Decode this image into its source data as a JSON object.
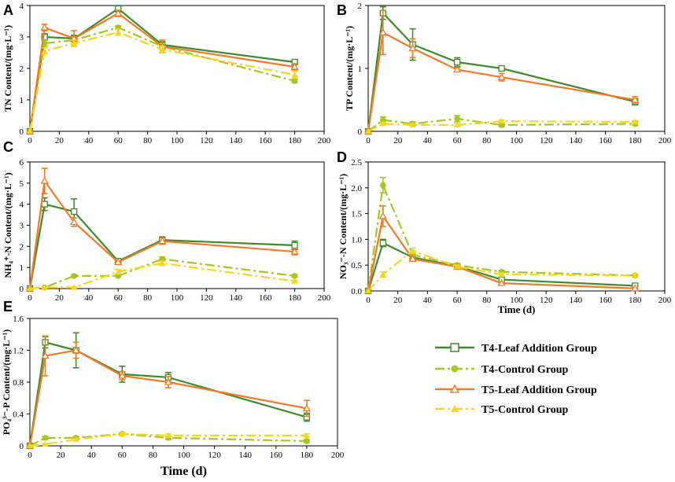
{
  "colors": {
    "t4_leaf": "#3e8b2c",
    "t4_control": "#a6c620",
    "t5_leaf": "#f37a24",
    "t5_control": "#f9d51e"
  },
  "legend": {
    "t4_leaf": "T4-Leaf Addition Group",
    "t4_control": "T4-Control Group",
    "t5_leaf": "T5-Leaf Addition Group",
    "t5_control": "T5-Control Group"
  },
  "chart_data": [
    {
      "panel": "A",
      "type": "line",
      "ylabel": "TN Content/(mg·L⁻¹)",
      "xlabel": "",
      "xlim": [
        0,
        200
      ],
      "ylim": [
        0,
        4
      ],
      "xticks": [
        "0",
        "20",
        "40",
        "60",
        "80",
        "100",
        "120",
        "140",
        "160",
        "180",
        "200"
      ],
      "yticks": [
        "0",
        "1",
        "2",
        "3",
        "4"
      ],
      "x": [
        0,
        10,
        30,
        60,
        90,
        180
      ],
      "series": [
        {
          "key": "t4_leaf",
          "values": [
            0,
            3.0,
            2.95,
            3.9,
            2.75,
            2.2
          ],
          "err": [
            0,
            0.1,
            0.1,
            0.1,
            0.1,
            0.05
          ]
        },
        {
          "key": "t4_control",
          "values": [
            0,
            2.8,
            2.9,
            3.3,
            2.7,
            1.6
          ],
          "err": [
            0,
            0.1,
            0.1,
            0.05,
            0.1,
            0.05
          ]
        },
        {
          "key": "t5_leaf",
          "values": [
            0,
            3.3,
            2.95,
            3.75,
            2.7,
            2.05
          ],
          "err": [
            0,
            0.1,
            0.25,
            0.1,
            0.2,
            0.1
          ]
        },
        {
          "key": "t5_control",
          "values": [
            0,
            2.55,
            2.8,
            3.15,
            2.6,
            1.8
          ],
          "err": [
            0,
            0.1,
            0.1,
            0.1,
            0.1,
            0.1
          ]
        }
      ]
    },
    {
      "panel": "B",
      "type": "line",
      "ylabel": "TP Content/(mg·L⁻¹)",
      "xlabel": "",
      "xlim": [
        0,
        200
      ],
      "ylim": [
        0,
        2
      ],
      "xticks": [
        "0",
        "20",
        "40",
        "60",
        "80",
        "100",
        "120",
        "140",
        "160",
        "180",
        "200"
      ],
      "yticks": [
        "0",
        "1",
        "2"
      ],
      "x": [
        0,
        10,
        30,
        60,
        90,
        180
      ],
      "series": [
        {
          "key": "t4_leaf",
          "values": [
            0,
            1.88,
            1.38,
            1.1,
            1.0,
            0.47
          ],
          "err": [
            0,
            0.1,
            0.25,
            0.07,
            0.03,
            0.05
          ]
        },
        {
          "key": "t4_control",
          "values": [
            0,
            0.18,
            0.12,
            0.2,
            0.1,
            0.12
          ],
          "err": [
            0,
            0.05,
            0.03,
            0.05,
            0.03,
            0.03
          ]
        },
        {
          "key": "t5_leaf",
          "values": [
            0,
            1.57,
            1.32,
            0.98,
            0.86,
            0.5
          ],
          "err": [
            0,
            0.35,
            0.15,
            0.03,
            0.06,
            0.05
          ]
        },
        {
          "key": "t5_control",
          "values": [
            0,
            0.12,
            0.1,
            0.1,
            0.16,
            0.15
          ],
          "err": [
            0,
            0.02,
            0.02,
            0.02,
            0.02,
            0.02
          ]
        }
      ]
    },
    {
      "panel": "C",
      "type": "line",
      "ylabel": "NH₄⁺-N Content/(mg·L⁻¹)",
      "xlabel": "",
      "xlim": [
        0,
        200
      ],
      "ylim": [
        0,
        6
      ],
      "xticks": [
        "0",
        "20",
        "40",
        "60",
        "80",
        "100",
        "120",
        "140",
        "160",
        "180",
        "200"
      ],
      "yticks": [
        "0",
        "1",
        "2",
        "3",
        "4",
        "5",
        "6"
      ],
      "x": [
        0,
        10,
        30,
        60,
        90,
        180
      ],
      "series": [
        {
          "key": "t4_leaf",
          "values": [
            0,
            4.0,
            3.65,
            1.3,
            2.3,
            2.05
          ],
          "err": [
            0,
            0.3,
            0.6,
            0.05,
            0.15,
            0.2
          ]
        },
        {
          "key": "t4_control",
          "values": [
            0,
            0.05,
            0.6,
            0.6,
            1.4,
            0.6
          ],
          "err": [
            0,
            0.02,
            0.05,
            0.05,
            0.1,
            0.05
          ]
        },
        {
          "key": "t5_leaf",
          "values": [
            0,
            5.1,
            3.15,
            1.25,
            2.25,
            1.75
          ],
          "err": [
            0,
            0.6,
            0.2,
            0.05,
            0.15,
            0.15
          ]
        },
        {
          "key": "t5_control",
          "values": [
            0,
            0.05,
            0.05,
            0.8,
            1.2,
            0.35
          ],
          "err": [
            0,
            0.02,
            0.02,
            0.1,
            0.1,
            0.05
          ]
        }
      ]
    },
    {
      "panel": "D",
      "type": "line",
      "ylabel": "NO₃⁻-N Content/(mg·L⁻¹)",
      "xlabel": "Time (d)",
      "xlim": [
        0,
        200
      ],
      "ylim": [
        0,
        2.5
      ],
      "xticks": [
        "0",
        "20",
        "40",
        "60",
        "80",
        "100",
        "120",
        "140",
        "160",
        "180",
        "200"
      ],
      "yticks": [
        "0.0",
        "0.5",
        "1.0",
        "1.5",
        "2.0",
        "2.5"
      ],
      "x": [
        0,
        10,
        30,
        60,
        90,
        180
      ],
      "series": [
        {
          "key": "t4_leaf",
          "values": [
            0,
            0.93,
            0.65,
            0.48,
            0.22,
            0.1
          ],
          "err": [
            0,
            0.07,
            0.03,
            0.03,
            0.02,
            0.02
          ]
        },
        {
          "key": "t4_control",
          "values": [
            0,
            2.05,
            0.7,
            0.5,
            0.37,
            0.3
          ],
          "err": [
            0,
            0.15,
            0.05,
            0.03,
            0.03,
            0.03
          ]
        },
        {
          "key": "t5_leaf",
          "values": [
            0,
            1.45,
            0.62,
            0.47,
            0.15,
            0.05
          ],
          "err": [
            0,
            0.2,
            0.03,
            0.03,
            0.02,
            0.01
          ]
        },
        {
          "key": "t5_control",
          "values": [
            0,
            0.32,
            0.78,
            0.47,
            0.32,
            0.3
          ],
          "err": [
            0,
            0.05,
            0.05,
            0.03,
            0.03,
            0.03
          ]
        }
      ]
    },
    {
      "panel": "E",
      "type": "line",
      "ylabel": "PO₄³⁻-P Content/(mg·L⁻¹)",
      "xlabel": "Time (d)",
      "xlim": [
        0,
        200
      ],
      "ylim": [
        0,
        1.6
      ],
      "xticks": [
        "0",
        "20",
        "40",
        "60",
        "80",
        "100",
        "120",
        "140",
        "160",
        "180",
        "200"
      ],
      "yticks": [
        "0",
        "0.4",
        "0.8",
        "1.2",
        "1.6"
      ],
      "x": [
        0,
        10,
        30,
        60,
        90,
        180
      ],
      "series": [
        {
          "key": "t4_leaf",
          "values": [
            0,
            1.3,
            1.2,
            0.9,
            0.86,
            0.36
          ],
          "err": [
            0,
            0.07,
            0.22,
            0.1,
            0.06,
            0.05
          ]
        },
        {
          "key": "t4_control",
          "values": [
            0,
            0.1,
            0.1,
            0.15,
            0.1,
            0.06
          ],
          "err": [
            0,
            0.02,
            0.02,
            0.02,
            0.02,
            0.02
          ]
        },
        {
          "key": "t5_leaf",
          "values": [
            0,
            1.13,
            1.2,
            0.88,
            0.8,
            0.47
          ],
          "err": [
            0,
            0.25,
            0.1,
            0.05,
            0.07,
            0.1
          ]
        },
        {
          "key": "t5_control",
          "values": [
            0,
            0.02,
            0.08,
            0.15,
            0.13,
            0.13
          ],
          "err": [
            0,
            0.01,
            0.01,
            0.02,
            0.02,
            0.02
          ]
        }
      ]
    }
  ]
}
